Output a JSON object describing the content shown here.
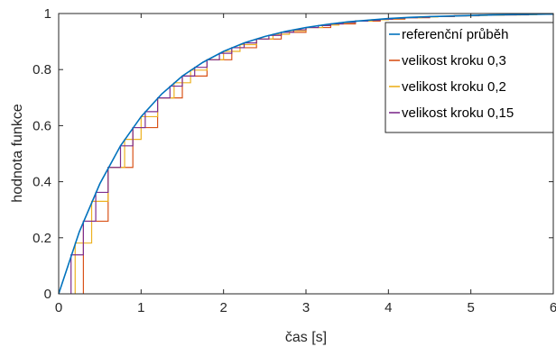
{
  "chart_data": {
    "type": "line",
    "title": "",
    "xlabel": "čas [s]",
    "ylabel": "hodnota funkce",
    "xlim": [
      0,
      6
    ],
    "ylim": [
      0,
      1
    ],
    "xticks": [
      0,
      1,
      2,
      3,
      4,
      5,
      6
    ],
    "yticks": [
      0,
      0.2,
      0.4,
      0.6,
      0.8,
      1
    ],
    "xtick_labels": [
      "0",
      "1",
      "2",
      "3",
      "4",
      "5",
      "6"
    ],
    "ytick_labels": [
      "0",
      "0.2",
      "0.4",
      "0.6",
      "0.8",
      "1"
    ],
    "grid": false,
    "legend_position": "top-right",
    "reference": {
      "name": "referenční průběh",
      "color": "#0072BD",
      "x": [
        0,
        0.25,
        0.5,
        0.75,
        1,
        1.25,
        1.5,
        1.75,
        2,
        2.25,
        2.5,
        2.75,
        3,
        3.25,
        3.5,
        3.75,
        4,
        4.25,
        4.5,
        4.75,
        5,
        5.25,
        5.5,
        5.75,
        6
      ],
      "y": [
        0,
        0.221,
        0.393,
        0.528,
        0.632,
        0.713,
        0.777,
        0.826,
        0.865,
        0.895,
        0.918,
        0.936,
        0.95,
        0.961,
        0.97,
        0.976,
        0.982,
        0.986,
        0.989,
        0.991,
        0.993,
        0.995,
        0.996,
        0.997,
        0.998
      ]
    },
    "series": [
      {
        "name": "velikost kroku 0,3",
        "color": "#D95319",
        "x": [
          0.3,
          0.6,
          0.9,
          1.2,
          1.5,
          1.8,
          2.1,
          2.4,
          2.7,
          3.0,
          3.3,
          3.6,
          3.9,
          4.2,
          4.5,
          4.8,
          5.1,
          5.4,
          5.7,
          6.0
        ],
        "y": [
          0.259,
          0.451,
          0.593,
          0.699,
          0.777,
          0.835,
          0.878,
          0.909,
          0.933,
          0.95,
          0.963,
          0.973,
          0.98,
          0.985,
          0.989,
          0.992,
          0.994,
          0.995,
          0.997,
          0.998
        ]
      },
      {
        "name": "velikost kroku 0,2",
        "color": "#EDB120",
        "x": [
          0.2,
          0.4,
          0.6,
          0.8,
          1.0,
          1.2,
          1.4,
          1.6,
          1.8,
          2.0,
          2.2,
          2.4,
          2.6,
          2.8,
          3.0,
          3.2,
          3.4,
          3.6,
          3.8,
          4.0,
          4.2,
          4.4,
          4.6,
          4.8,
          5.0,
          5.2,
          5.4,
          5.6,
          5.8,
          6.0
        ],
        "y": [
          0.181,
          0.33,
          0.451,
          0.551,
          0.632,
          0.699,
          0.753,
          0.798,
          0.835,
          0.865,
          0.889,
          0.909,
          0.926,
          0.939,
          0.95,
          0.959,
          0.967,
          0.973,
          0.978,
          0.982,
          0.985,
          0.988,
          0.99,
          0.992,
          0.993,
          0.994,
          0.995,
          0.996,
          0.997,
          0.998
        ]
      },
      {
        "name": "velikost kroku 0,15",
        "color": "#7E2F8E",
        "x": [
          0.15,
          0.3,
          0.45,
          0.6,
          0.75,
          0.9,
          1.05,
          1.2,
          1.35,
          1.5,
          1.65,
          1.8,
          1.95,
          2.1,
          2.25,
          2.4,
          2.55,
          2.7,
          2.85,
          3.0,
          3.15,
          3.3,
          3.45,
          3.6,
          3.75,
          3.9,
          4.05,
          4.2,
          4.35,
          4.5,
          4.65,
          4.8,
          4.95,
          5.1,
          5.25,
          5.4,
          5.55,
          5.7,
          5.85,
          6.0
        ],
        "y": [
          0.139,
          0.259,
          0.362,
          0.451,
          0.528,
          0.593,
          0.65,
          0.699,
          0.741,
          0.777,
          0.808,
          0.835,
          0.858,
          0.878,
          0.895,
          0.909,
          0.922,
          0.933,
          0.942,
          0.95,
          0.957,
          0.963,
          0.968,
          0.973,
          0.976,
          0.98,
          0.983,
          0.985,
          0.987,
          0.989,
          0.99,
          0.992,
          0.993,
          0.994,
          0.995,
          0.995,
          0.996,
          0.997,
          0.997,
          0.998
        ]
      }
    ]
  }
}
